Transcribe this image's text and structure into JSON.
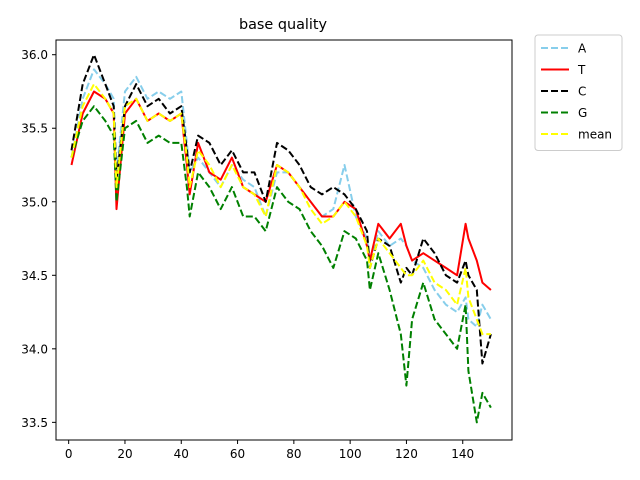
{
  "chart_data": {
    "type": "line",
    "title": "base quality",
    "xlabel": "",
    "ylabel": "",
    "xlim": [
      -4.5,
      157.5
    ],
    "ylim": [
      33.38,
      36.1
    ],
    "xticks": [
      0,
      20,
      40,
      60,
      80,
      100,
      120,
      140
    ],
    "yticks": [
      33.5,
      34.0,
      34.5,
      35.0,
      35.5,
      36.0
    ],
    "ytick_labels": [
      "33.5",
      "34.0",
      "34.5",
      "35.0",
      "35.5",
      "36.0"
    ],
    "grid": false,
    "legend_position": "outside-top-right",
    "x": [
      1,
      5,
      9,
      13,
      16,
      17,
      20,
      24,
      28,
      32,
      36,
      40,
      42,
      43,
      46,
      50,
      54,
      58,
      62,
      66,
      70,
      74,
      78,
      82,
      86,
      90,
      94,
      98,
      102,
      106,
      107,
      110,
      114,
      118,
      120,
      122,
      126,
      130,
      134,
      138,
      141,
      142,
      145,
      147,
      150
    ],
    "series": [
      {
        "name": "A",
        "color": "#87ceeb",
        "dash": "dashed",
        "values": [
          35.3,
          35.7,
          35.9,
          35.8,
          35.7,
          35.2,
          35.75,
          35.85,
          35.7,
          35.75,
          35.7,
          35.75,
          35.4,
          35.2,
          35.3,
          35.2,
          35.1,
          35.25,
          35.15,
          35.1,
          34.9,
          35.2,
          35.2,
          35.1,
          35.0,
          34.9,
          34.95,
          35.25,
          34.9,
          34.75,
          34.6,
          34.8,
          34.7,
          34.75,
          34.7,
          34.6,
          34.55,
          34.4,
          34.3,
          34.25,
          34.35,
          34.2,
          34.15,
          34.3,
          34.2
        ]
      },
      {
        "name": "T",
        "color": "#ff0000",
        "dash": "solid",
        "values": [
          35.25,
          35.6,
          35.75,
          35.7,
          35.6,
          34.95,
          35.6,
          35.7,
          35.55,
          35.6,
          35.55,
          35.6,
          35.25,
          35.05,
          35.4,
          35.2,
          35.15,
          35.3,
          35.1,
          35.05,
          35.0,
          35.25,
          35.2,
          35.1,
          35.0,
          34.9,
          34.9,
          35.0,
          34.95,
          34.7,
          34.6,
          34.85,
          34.75,
          34.85,
          34.7,
          34.6,
          34.65,
          34.6,
          34.55,
          34.5,
          34.85,
          34.75,
          34.6,
          34.45,
          34.4
        ]
      },
      {
        "name": "C",
        "color": "#000000",
        "dash": "dashed",
        "values": [
          35.35,
          35.8,
          36.0,
          35.8,
          35.65,
          35.15,
          35.65,
          35.8,
          35.65,
          35.7,
          35.6,
          35.65,
          35.35,
          35.2,
          35.45,
          35.4,
          35.25,
          35.35,
          35.2,
          35.2,
          35.0,
          35.4,
          35.35,
          35.25,
          35.1,
          35.05,
          35.1,
          35.05,
          34.95,
          34.8,
          34.55,
          34.75,
          34.7,
          34.45,
          34.55,
          34.5,
          34.75,
          34.65,
          34.5,
          34.45,
          34.6,
          34.5,
          34.4,
          33.9,
          34.1
        ]
      },
      {
        "name": "G",
        "color": "#008000",
        "dash": "dashed",
        "values": [
          35.3,
          35.55,
          35.65,
          35.55,
          35.45,
          35.0,
          35.5,
          35.55,
          35.4,
          35.45,
          35.4,
          35.4,
          35.1,
          34.9,
          35.2,
          35.1,
          34.95,
          35.1,
          34.9,
          34.9,
          34.8,
          35.1,
          35.0,
          34.95,
          34.8,
          34.7,
          34.55,
          34.8,
          34.75,
          34.6,
          34.4,
          34.65,
          34.4,
          34.1,
          33.75,
          34.2,
          34.45,
          34.2,
          34.1,
          34.0,
          34.3,
          33.85,
          33.5,
          33.7,
          33.6
        ]
      },
      {
        "name": "mean",
        "color": "#ffff00",
        "dash": "dashed",
        "values": [
          35.3,
          35.65,
          35.8,
          35.7,
          35.6,
          35.1,
          35.65,
          35.7,
          35.55,
          35.6,
          35.55,
          35.6,
          35.3,
          35.1,
          35.35,
          35.25,
          35.1,
          35.25,
          35.1,
          35.05,
          34.9,
          35.25,
          35.2,
          35.1,
          34.95,
          34.85,
          34.9,
          35.0,
          34.9,
          34.7,
          34.55,
          34.75,
          34.65,
          34.55,
          34.5,
          34.5,
          34.6,
          34.45,
          34.4,
          34.3,
          34.55,
          34.35,
          34.2,
          34.1,
          34.1
        ]
      }
    ]
  }
}
